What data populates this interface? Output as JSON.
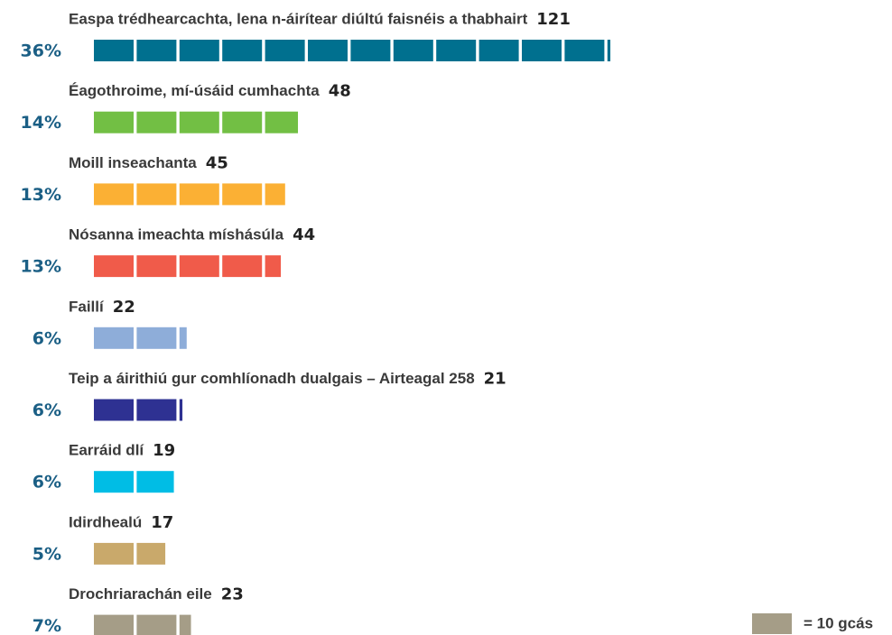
{
  "chart_data": {
    "type": "pictogram-bar",
    "categories": [
      "Easpa trédhearcachta, lena n-áirítear diúltú faisnéis a thabhairt",
      "Éagothroime, mí-úsáid cumhachta",
      "Moill inseachanta",
      "Nósanna imeachta míshásúla",
      "Faillí",
      "Teip a áirithiú gur comhlíonadh dualgais – Airteagal 258",
      "Earráid dlí",
      "Idirdhealú",
      "Drochriarachán eile"
    ],
    "values": [
      121,
      48,
      45,
      44,
      22,
      21,
      19,
      17,
      23
    ],
    "shares": [
      36,
      14,
      13,
      13,
      6,
      6,
      6,
      5,
      7
    ],
    "share_labels": [
      "36%",
      "14%",
      "13%",
      "13%",
      "6%",
      "6%",
      "6%",
      "5%",
      "7%"
    ],
    "colors": [
      "#00708f",
      "#72bf44",
      "#fbb034",
      "#f05b4a",
      "#8eadd9",
      "#2e3192",
      "#00bde5",
      "#c9a96b",
      "#a59d87"
    ],
    "unit": {
      "value": 10,
      "label": "= 10 gcás"
    }
  }
}
